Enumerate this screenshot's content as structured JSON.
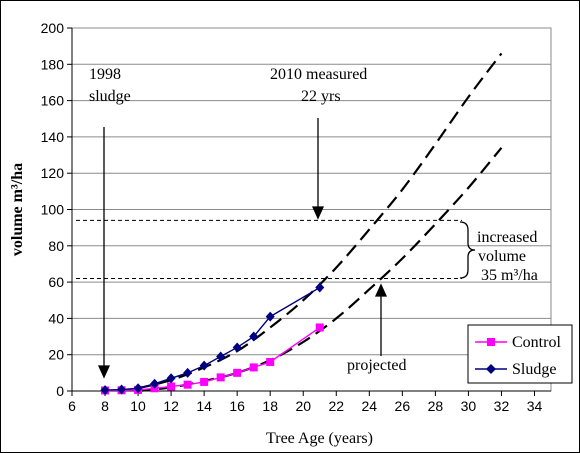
{
  "chart_data": {
    "type": "line",
    "xlabel": "Tree Age (years)",
    "ylabel": "volume m³/ha",
    "xlim": [
      6,
      35
    ],
    "ylim": [
      0,
      200
    ],
    "xticks": [
      6,
      8,
      10,
      12,
      14,
      16,
      18,
      20,
      22,
      24,
      26,
      28,
      30,
      32,
      34
    ],
    "yticks": [
      0,
      20,
      40,
      60,
      80,
      100,
      120,
      140,
      160,
      180,
      200
    ],
    "grid": "horizontal",
    "legend_position": "bottom-right",
    "series": [
      {
        "name": "Control",
        "color": "#ff00ff",
        "marker": "square",
        "x": [
          8,
          9,
          10,
          11,
          12,
          13,
          14,
          15,
          16,
          17,
          18,
          21
        ],
        "y": [
          0.3,
          0.4,
          0.6,
          1.5,
          2.5,
          3.5,
          5,
          7.5,
          10,
          13,
          16,
          35
        ]
      },
      {
        "name": "Sludge",
        "color": "#000080",
        "marker": "diamond",
        "x": [
          8,
          9,
          10,
          11,
          12,
          13,
          14,
          15,
          16,
          17,
          18,
          21
        ],
        "y": [
          0.5,
          0.8,
          1.5,
          4,
          7,
          10,
          14,
          19,
          24,
          30,
          41,
          57
        ]
      }
    ],
    "projections": [
      {
        "for": "Sludge",
        "x": [
          10,
          12,
          14,
          16,
          18,
          20,
          22,
          24,
          26,
          28,
          30,
          32
        ],
        "y": [
          1.5,
          6,
          13,
          22,
          35,
          50,
          68,
          89,
          111,
          136,
          162,
          186
        ]
      },
      {
        "for": "Control",
        "x": [
          10,
          12,
          14,
          16,
          18,
          20,
          22,
          24,
          26,
          28,
          30,
          32
        ],
        "y": [
          0,
          2,
          5.5,
          10,
          17,
          27,
          40,
          56,
          73,
          92,
          112,
          134
        ]
      }
    ],
    "reference_lines": [
      {
        "y": 94
      },
      {
        "y": 62
      }
    ],
    "annotations": {
      "sludge_1998": [
        "1998",
        "sludge"
      ],
      "measured_2010": [
        "2010 measured",
        "22 yrs"
      ],
      "increased": [
        "increased",
        "volume",
        "35 m³/ha"
      ],
      "projected": "projected"
    }
  }
}
